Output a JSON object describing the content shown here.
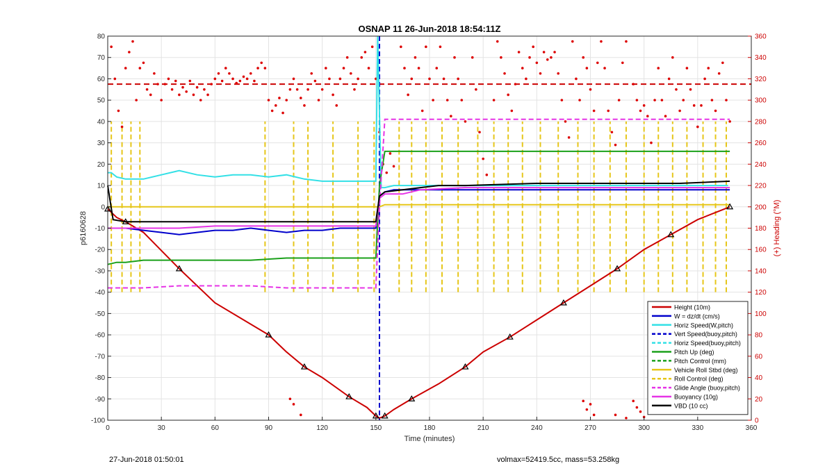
{
  "chart_data": {
    "type": "line",
    "title": "OSNAP 11 26-Jun-2018 18:54:11Z",
    "xlabel": "Time (minutes)",
    "ylabel": "p6160628",
    "y2label": "(+) Heading (°M)",
    "xlim": [
      0,
      360
    ],
    "ylim": [
      -100,
      80
    ],
    "y2lim": [
      0,
      360
    ],
    "xticks": [
      "0",
      "30",
      "60",
      "90",
      "120",
      "150",
      "180",
      "210",
      "240",
      "270",
      "300",
      "330",
      "360"
    ],
    "yticks": [
      "80",
      "70",
      "60",
      "50",
      "40",
      "30",
      "20",
      "10",
      "0",
      "-10",
      "-20",
      "-30",
      "-40",
      "-50",
      "-60",
      "-70",
      "-80",
      "-90",
      "-100"
    ],
    "y2ticks": [
      "360",
      "340",
      "320",
      "300",
      "280",
      "260",
      "240",
      "220",
      "200",
      "180",
      "160",
      "140",
      "120",
      "100",
      "80",
      "60",
      "40",
      "20",
      "0"
    ],
    "grid": true,
    "legend_position": "bottom-right",
    "series": [
      {
        "name": "Height (10m)",
        "color": "#cc0000",
        "style": "solid",
        "x": [
          0,
          5,
          10,
          20,
          40,
          60,
          90,
          100,
          110,
          120,
          135,
          145,
          150,
          152,
          155,
          160,
          170,
          185,
          200,
          210,
          225,
          240,
          255,
          270,
          285,
          300,
          315,
          330,
          348
        ],
        "values": [
          -1,
          -5,
          -7,
          -12,
          -29,
          -45,
          -60,
          -68,
          -75,
          -80,
          -89,
          -94,
          -98,
          -99,
          -98,
          -95,
          -90,
          -83,
          -75,
          -68,
          -61,
          -53,
          -45,
          -37,
          -29,
          -20,
          -13,
          -6,
          0
        ]
      },
      {
        "name": "W = dz/dt (cm/s)",
        "color": "#0000cc",
        "style": "solid",
        "x": [
          0,
          5,
          10,
          20,
          30,
          40,
          50,
          60,
          70,
          80,
          90,
          100,
          110,
          120,
          130,
          140,
          150,
          152,
          155,
          160,
          170,
          180,
          200,
          220,
          240,
          260,
          280,
          300,
          320,
          340,
          348
        ],
        "values": [
          -10,
          -10,
          -10,
          -11,
          -12,
          -13,
          -12,
          -11,
          -11,
          -10,
          -11,
          -12,
          -11,
          -11,
          -10,
          -10,
          -10,
          5,
          7,
          8,
          8,
          8,
          8,
          8,
          8,
          8,
          8,
          8,
          8,
          8,
          8
        ]
      },
      {
        "name": "Horiz Speed(W,pitch)",
        "color": "#33e0e6",
        "style": "solid",
        "x": [
          0,
          2,
          5,
          10,
          20,
          30,
          40,
          50,
          60,
          70,
          80,
          90,
          100,
          110,
          120,
          130,
          140,
          150,
          151,
          153,
          155,
          160,
          170,
          180,
          200,
          240,
          280,
          320,
          347
        ],
        "values": [
          16,
          16,
          14,
          13,
          13,
          15,
          17,
          15,
          14,
          15,
          15,
          14,
          15,
          13,
          12,
          12,
          12,
          12,
          80,
          9,
          9,
          10,
          10,
          10,
          10,
          10,
          10,
          10,
          10
        ]
      },
      {
        "name": "Vert Speed(buoy,pitch)",
        "color": "#0000cc",
        "style": "dash",
        "x": [],
        "values": []
      },
      {
        "name": "Horiz Speed(buoy,pitch)",
        "color": "#33e0e6",
        "style": "dash",
        "x": [],
        "values": []
      },
      {
        "name": "Pitch Up (deg)",
        "color": "#1aa01a",
        "style": "solid",
        "x": [
          0,
          5,
          10,
          20,
          40,
          60,
          80,
          100,
          120,
          140,
          150,
          152,
          155,
          160,
          200,
          240,
          280,
          320,
          348
        ],
        "values": [
          -27,
          -26,
          -26,
          -25,
          -25,
          -25,
          -25,
          -24,
          -24,
          -24,
          -24,
          10,
          26,
          26,
          26,
          26,
          26,
          26,
          26
        ]
      },
      {
        "name": "Pitch Control (mm)",
        "color": "#1aa01a",
        "style": "dash",
        "x": [],
        "values": []
      },
      {
        "name": "Vehicle Roll Stbd (deg)",
        "color": "#e6c619",
        "style": "solid",
        "x": [
          0,
          10,
          20,
          40,
          60,
          80,
          100,
          120,
          140,
          150,
          152,
          155,
          160,
          200,
          240,
          280,
          320,
          348
        ],
        "values": [
          0,
          0,
          0,
          0,
          0,
          0,
          0,
          0,
          0,
          0,
          0,
          1,
          1,
          1,
          1,
          1,
          1,
          1
        ]
      },
      {
        "name": "Roll Control (deg)",
        "color": "#e6c619",
        "style": "dash",
        "x": [],
        "values": []
      },
      {
        "name": "Glide Angle (buoy,pitch)",
        "color": "#e633e6",
        "style": "dash",
        "x": [
          0,
          10,
          20,
          40,
          60,
          80,
          100,
          120,
          140,
          150,
          152,
          155,
          160,
          200,
          240,
          280,
          320,
          348
        ],
        "values": [
          -38,
          -38,
          -38,
          -37,
          -37,
          -37,
          -38,
          -38,
          -38,
          -38,
          0,
          41,
          41,
          41,
          41,
          41,
          41,
          41
        ]
      },
      {
        "name": "Buoyancy (10g)",
        "color": "#e633e6",
        "style": "solid",
        "x": [
          0,
          10,
          20,
          40,
          60,
          80,
          100,
          120,
          140,
          150,
          152,
          155,
          165,
          175,
          200,
          240,
          280,
          320,
          348
        ],
        "values": [
          -10,
          -10,
          -10,
          -10,
          -9,
          -9,
          -9,
          -9,
          -9,
          -9,
          4,
          6,
          6,
          8,
          9,
          9,
          9,
          9,
          9
        ]
      },
      {
        "name": "VBD (10 cc)",
        "color": "#000000",
        "style": "solid",
        "x": [
          0,
          3,
          10,
          20,
          40,
          60,
          80,
          100,
          120,
          140,
          150,
          152,
          155,
          165,
          175,
          185,
          200,
          240,
          280,
          320,
          348
        ],
        "values": [
          10,
          -6,
          -7,
          -7,
          -7,
          -7,
          -7,
          -7,
          -7,
          -7,
          -7,
          5,
          7,
          8,
          9,
          10,
          10,
          11,
          11,
          11,
          12
        ]
      }
    ],
    "roll_control_spikes": [
      {
        "x": 2,
        "values": [
          -40,
          40
        ]
      },
      {
        "x": 8,
        "values": [
          -40,
          40
        ]
      },
      {
        "x": 13,
        "values": [
          -40,
          40
        ]
      },
      {
        "x": 18,
        "values": [
          -40,
          40
        ]
      },
      {
        "x": 88,
        "values": [
          -40,
          40
        ]
      },
      {
        "x": 104,
        "values": [
          -40,
          40
        ]
      },
      {
        "x": 112,
        "values": [
          -40,
          40
        ]
      },
      {
        "x": 126,
        "values": [
          -40,
          40
        ]
      },
      {
        "x": 140,
        "values": [
          -40,
          40
        ]
      },
      {
        "x": 149,
        "values": [
          -40,
          40
        ]
      },
      {
        "x": 163,
        "values": [
          -40,
          40
        ]
      },
      {
        "x": 170,
        "values": [
          -40,
          40
        ]
      },
      {
        "x": 178,
        "values": [
          -40,
          40
        ]
      },
      {
        "x": 187,
        "values": [
          -40,
          40
        ]
      },
      {
        "x": 196,
        "values": [
          -40,
          40
        ]
      },
      {
        "x": 207,
        "values": [
          -40,
          40
        ]
      },
      {
        "x": 216,
        "values": [
          -40,
          40
        ]
      },
      {
        "x": 224,
        "values": [
          -40,
          40
        ]
      },
      {
        "x": 232,
        "values": [
          -40,
          40
        ]
      },
      {
        "x": 242,
        "values": [
          -40,
          40
        ]
      },
      {
        "x": 252,
        "values": [
          -40,
          40
        ]
      },
      {
        "x": 263,
        "values": [
          -40,
          40
        ]
      },
      {
        "x": 272,
        "values": [
          -40,
          40
        ]
      },
      {
        "x": 281,
        "values": [
          -40,
          40
        ]
      },
      {
        "x": 290,
        "values": [
          -40,
          40
        ]
      },
      {
        "x": 300,
        "values": [
          -40,
          40
        ]
      },
      {
        "x": 308,
        "values": [
          -40,
          40
        ]
      },
      {
        "x": 316,
        "values": [
          -40,
          40
        ]
      },
      {
        "x": 324,
        "values": [
          -40,
          40
        ]
      },
      {
        "x": 333,
        "values": [
          -40,
          40
        ]
      },
      {
        "x": 340,
        "values": [
          -40,
          40
        ]
      },
      {
        "x": 346,
        "values": [
          -40,
          40
        ]
      }
    ],
    "vert_speed_spike_x": 152,
    "heading_target_y2": 315,
    "heading_points_y2": [
      [
        2,
        350
      ],
      [
        4,
        320
      ],
      [
        6,
        290
      ],
      [
        8,
        275
      ],
      [
        10,
        330
      ],
      [
        12,
        345
      ],
      [
        14,
        355
      ],
      [
        16,
        300
      ],
      [
        18,
        330
      ],
      [
        20,
        335
      ],
      [
        22,
        310
      ],
      [
        24,
        305
      ],
      [
        26,
        325
      ],
      [
        28,
        315
      ],
      [
        30,
        300
      ],
      [
        32,
        315
      ],
      [
        34,
        320
      ],
      [
        36,
        310
      ],
      [
        38,
        318
      ],
      [
        40,
        305
      ],
      [
        42,
        312
      ],
      [
        44,
        308
      ],
      [
        46,
        318
      ],
      [
        48,
        305
      ],
      [
        50,
        312
      ],
      [
        52,
        300
      ],
      [
        54,
        310
      ],
      [
        56,
        305
      ],
      [
        58,
        315
      ],
      [
        60,
        320
      ],
      [
        62,
        325
      ],
      [
        64,
        318
      ],
      [
        66,
        330
      ],
      [
        68,
        325
      ],
      [
        70,
        320
      ],
      [
        72,
        316
      ],
      [
        74,
        318
      ],
      [
        76,
        322
      ],
      [
        78,
        320
      ],
      [
        80,
        325
      ],
      [
        82,
        318
      ],
      [
        84,
        330
      ],
      [
        86,
        335
      ],
      [
        88,
        330
      ],
      [
        90,
        300
      ],
      [
        92,
        290
      ],
      [
        94,
        295
      ],
      [
        96,
        302
      ],
      [
        98,
        288
      ],
      [
        100,
        300
      ],
      [
        102,
        310
      ],
      [
        104,
        320
      ],
      [
        106,
        310
      ],
      [
        108,
        302
      ],
      [
        110,
        295
      ],
      [
        112,
        310
      ],
      [
        114,
        325
      ],
      [
        116,
        318
      ],
      [
        118,
        300
      ],
      [
        120,
        310
      ],
      [
        122,
        330
      ],
      [
        124,
        320
      ],
      [
        126,
        305
      ],
      [
        128,
        295
      ],
      [
        130,
        320
      ],
      [
        132,
        330
      ],
      [
        134,
        340
      ],
      [
        136,
        325
      ],
      [
        138,
        310
      ],
      [
        140,
        320
      ],
      [
        142,
        340
      ],
      [
        144,
        345
      ],
      [
        146,
        330
      ],
      [
        148,
        350
      ],
      [
        150,
        320
      ],
      [
        152,
        270
      ],
      [
        154,
        240
      ],
      [
        156,
        232
      ],
      [
        158,
        250
      ],
      [
        160,
        238
      ],
      [
        164,
        350
      ],
      [
        166,
        330
      ],
      [
        168,
        305
      ],
      [
        170,
        320
      ],
      [
        172,
        340
      ],
      [
        174,
        330
      ],
      [
        176,
        290
      ],
      [
        178,
        350
      ],
      [
        180,
        320
      ],
      [
        182,
        300
      ],
      [
        184,
        330
      ],
      [
        186,
        350
      ],
      [
        188,
        320
      ],
      [
        190,
        300
      ],
      [
        192,
        285
      ],
      [
        194,
        340
      ],
      [
        196,
        320
      ],
      [
        198,
        300
      ],
      [
        200,
        280
      ],
      [
        204,
        340
      ],
      [
        206,
        310
      ],
      [
        208,
        270
      ],
      [
        210,
        245
      ],
      [
        212,
        230
      ],
      [
        216,
        300
      ],
      [
        218,
        355
      ],
      [
        220,
        340
      ],
      [
        222,
        325
      ],
      [
        224,
        305
      ],
      [
        226,
        290
      ],
      [
        228,
        315
      ],
      [
        230,
        345
      ],
      [
        232,
        330
      ],
      [
        234,
        320
      ],
      [
        236,
        340
      ],
      [
        238,
        350
      ],
      [
        240,
        335
      ],
      [
        242,
        325
      ],
      [
        244,
        345
      ],
      [
        246,
        338
      ],
      [
        248,
        340
      ],
      [
        250,
        345
      ],
      [
        252,
        325
      ],
      [
        254,
        300
      ],
      [
        256,
        280
      ],
      [
        258,
        265
      ],
      [
        260,
        355
      ],
      [
        262,
        320
      ],
      [
        264,
        300
      ],
      [
        266,
        340
      ],
      [
        268,
        330
      ],
      [
        270,
        310
      ],
      [
        272,
        290
      ],
      [
        274,
        335
      ],
      [
        276,
        355
      ],
      [
        278,
        330
      ],
      [
        280,
        290
      ],
      [
        282,
        270
      ],
      [
        284,
        258
      ],
      [
        286,
        300
      ],
      [
        288,
        335
      ],
      [
        290,
        355
      ],
      [
        294,
        315
      ],
      [
        296,
        300
      ],
      [
        298,
        290
      ],
      [
        300,
        295
      ],
      [
        302,
        285
      ],
      [
        304,
        260
      ],
      [
        306,
        300
      ],
      [
        308,
        330
      ],
      [
        310,
        300
      ],
      [
        312,
        285
      ],
      [
        314,
        320
      ],
      [
        316,
        340
      ],
      [
        318,
        310
      ],
      [
        320,
        290
      ],
      [
        322,
        300
      ],
      [
        324,
        330
      ],
      [
        326,
        310
      ],
      [
        328,
        295
      ],
      [
        330,
        275
      ],
      [
        332,
        295
      ],
      [
        334,
        320
      ],
      [
        336,
        330
      ],
      [
        338,
        300
      ],
      [
        340,
        290
      ],
      [
        342,
        325
      ],
      [
        344,
        335
      ],
      [
        346,
        300
      ],
      [
        348,
        280
      ],
      [
        268,
        10
      ],
      [
        270,
        15
      ],
      [
        272,
        5
      ],
      [
        284,
        5
      ],
      [
        294,
        18
      ],
      [
        296,
        12
      ],
      [
        298,
        8
      ],
      [
        300,
        3
      ],
      [
        102,
        20
      ],
      [
        104,
        15
      ],
      [
        108,
        5
      ],
      [
        266,
        18
      ],
      [
        290,
        2
      ]
    ],
    "footer_left": "27-Jun-2018 01:50:01",
    "footer_right": "volmax=52419.5cc, mass=53.258kg"
  }
}
